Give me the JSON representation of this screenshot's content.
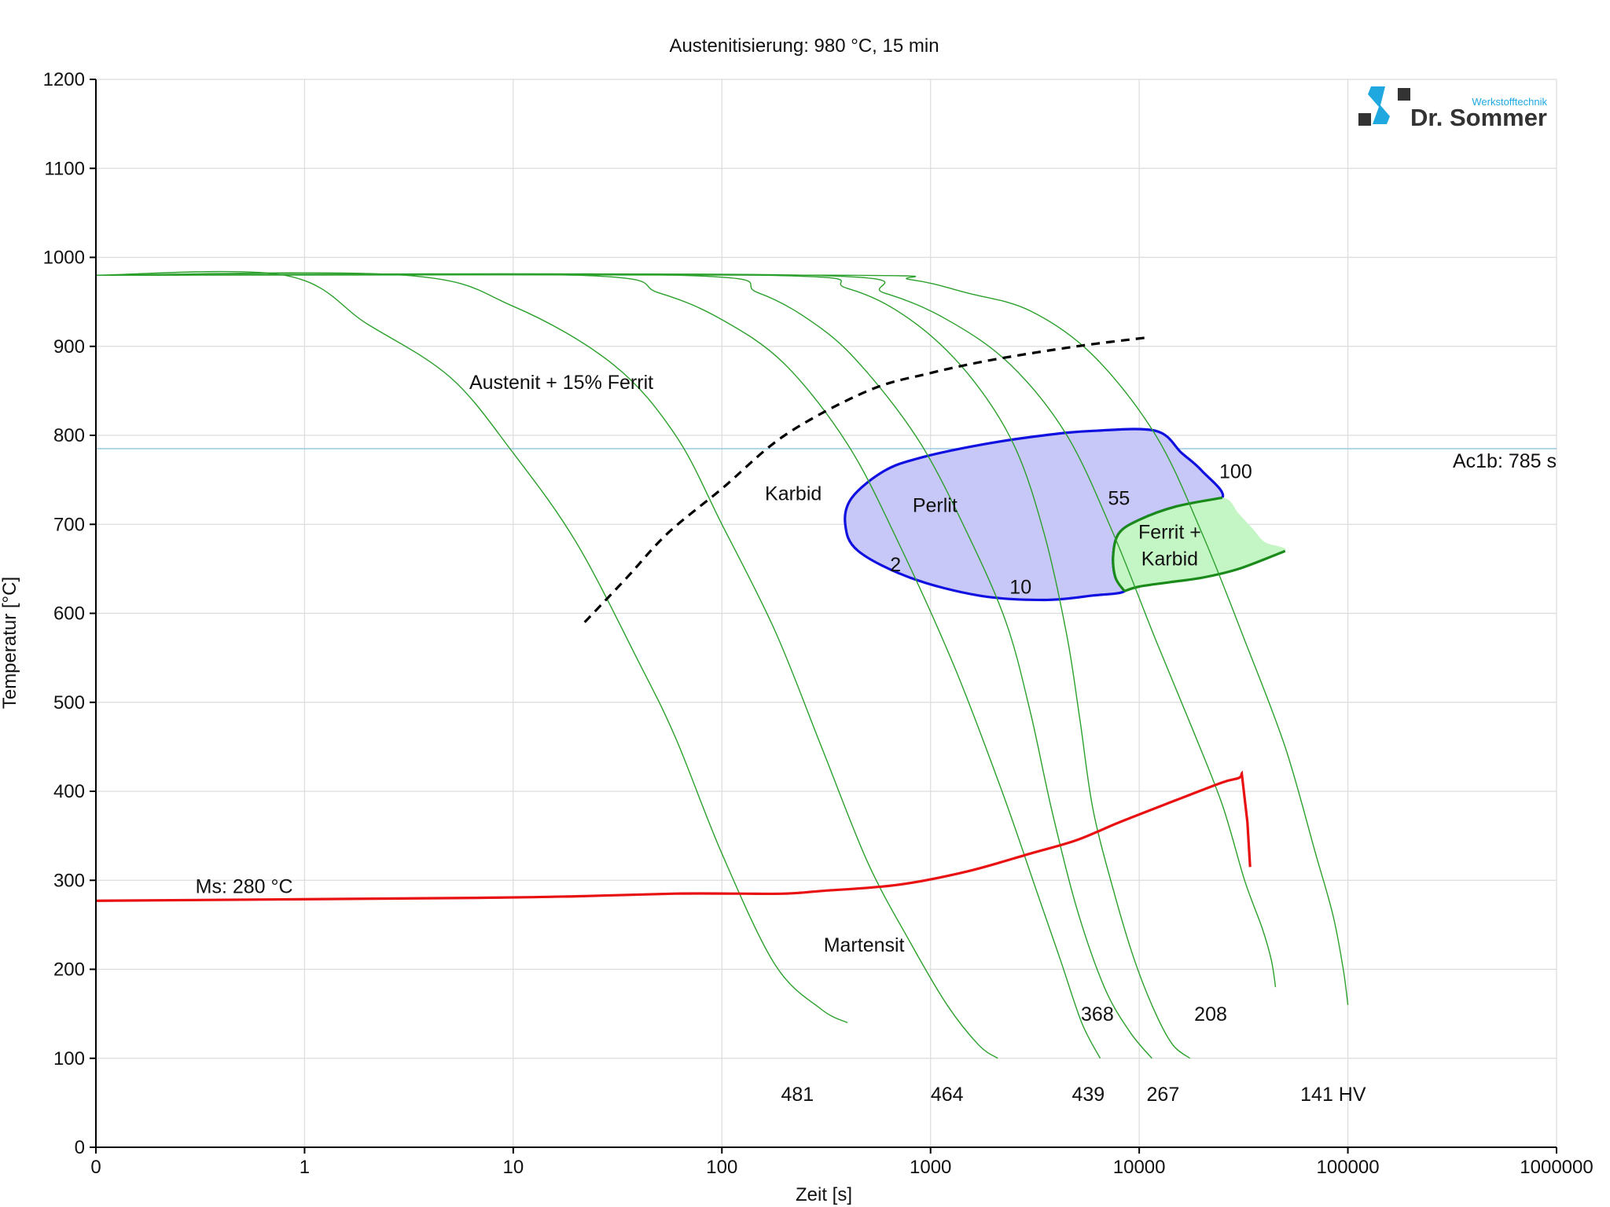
{
  "chart_data": {
    "type": "line",
    "title": "Austenitisierung: 980 °C, 15 min",
    "xlabel": "Zeit [s]",
    "ylabel": "Temperatur [°C]",
    "x_scale": "log",
    "x_ticks": [
      {
        "label": "0",
        "value": 0.1
      },
      {
        "label": "1",
        "value": 1
      },
      {
        "label": "10",
        "value": 10
      },
      {
        "label": "100",
        "value": 100
      },
      {
        "label": "1000",
        "value": 1000
      },
      {
        "label": "10000",
        "value": 10000
      },
      {
        "label": "100000",
        "value": 100000
      },
      {
        "label": "1000000",
        "value": 1000000
      }
    ],
    "y_ticks": [
      0,
      100,
      200,
      300,
      400,
      500,
      600,
      700,
      800,
      900,
      1000,
      1100,
      1200
    ],
    "xlim": [
      0.1,
      1000000
    ],
    "ylim": [
      0,
      1200
    ],
    "grid": true,
    "logo": {
      "brand": "Dr. Sommer",
      "tagline": "Werkstofftechnik"
    },
    "colors": {
      "cooling": "#2ca02c",
      "perlit_edge": "#1010e0",
      "perlit_fill": "#c8c8f8",
      "ferrit_edge": "#1a8a1a",
      "ferrit_fill": "#c4f5c4",
      "ms": "#e81010",
      "ac1b": "#9cc8e0",
      "start": "#000000",
      "logo_blue": "#1fa8e0",
      "logo_dark": "#333333"
    },
    "reference_lines": [
      {
        "label": "Ac1b: 785 s",
        "y": 785
      }
    ],
    "ms_label": "Ms: 280 °C",
    "region_labels": [
      {
        "text": "Austenit + 15% Ferrit",
        "x": 17,
        "y": 860
      },
      {
        "text": "Karbid",
        "x": 220,
        "y": 735
      },
      {
        "text": "Perlit",
        "x": 1050,
        "y": 722
      },
      {
        "text": "Ferrit +",
        "x": 14000,
        "y": 692
      },
      {
        "text": "Karbid",
        "x": 14000,
        "y": 662
      },
      {
        "text": "Martensit",
        "x": 480,
        "y": 228
      }
    ],
    "percent_labels": [
      {
        "text": "2",
        "x": 680,
        "y": 655
      },
      {
        "text": "10",
        "x": 2700,
        "y": 630
      },
      {
        "text": "55",
        "x": 8000,
        "y": 730
      },
      {
        "text": "100",
        "x": 29000,
        "y": 760
      }
    ],
    "hardness_labels": [
      {
        "text": "481",
        "x": 230,
        "y": 60
      },
      {
        "text": "464",
        "x": 1200,
        "y": 60
      },
      {
        "text": "439",
        "x": 5700,
        "y": 60
      },
      {
        "text": "267",
        "x": 13000,
        "y": 60
      },
      {
        "text": "141 HV",
        "x": 85000,
        "y": 60
      },
      {
        "text": "368",
        "x": 6300,
        "y": 150
      },
      {
        "text": "208",
        "x": 22000,
        "y": 150
      }
    ],
    "series": [
      {
        "role": "cooling",
        "points": [
          [
            0.1,
            980
          ],
          [
            0.8,
            980
          ],
          [
            2,
            925
          ],
          [
            5,
            865
          ],
          [
            10,
            780
          ],
          [
            20,
            680
          ],
          [
            40,
            545
          ],
          [
            60,
            460
          ],
          [
            100,
            330
          ],
          [
            180,
            205
          ],
          [
            300,
            155
          ],
          [
            400,
            140
          ]
        ]
      },
      {
        "role": "cooling",
        "points": [
          [
            0.1,
            980
          ],
          [
            3,
            980
          ],
          [
            10,
            945
          ],
          [
            30,
            880
          ],
          [
            60,
            800
          ],
          [
            100,
            700
          ],
          [
            180,
            580
          ],
          [
            300,
            450
          ],
          [
            500,
            320
          ],
          [
            800,
            230
          ],
          [
            1200,
            160
          ],
          [
            1700,
            115
          ],
          [
            2100,
            100
          ]
        ]
      },
      {
        "role": "cooling",
        "points": [
          [
            0.1,
            980
          ],
          [
            20,
            980
          ],
          [
            50,
            960
          ],
          [
            100,
            930
          ],
          [
            200,
            880
          ],
          [
            400,
            790
          ],
          [
            700,
            680
          ],
          [
            1300,
            540
          ],
          [
            2200,
            400
          ],
          [
            3200,
            290
          ],
          [
            4200,
            210
          ],
          [
            5300,
            140
          ],
          [
            6500,
            100
          ]
        ]
      },
      {
        "role": "cooling",
        "points": [
          [
            0.1,
            980
          ],
          [
            60,
            980
          ],
          [
            150,
            960
          ],
          [
            300,
            920
          ],
          [
            500,
            870
          ],
          [
            900,
            790
          ],
          [
            1500,
            690
          ],
          [
            2300,
            590
          ],
          [
            3000,
            490
          ],
          [
            3800,
            380
          ],
          [
            5000,
            270
          ],
          [
            6800,
            180
          ],
          [
            9000,
            130
          ],
          [
            11500,
            100
          ]
        ]
      },
      {
        "role": "cooling",
        "points": [
          [
            0.1,
            980
          ],
          [
            150,
            980
          ],
          [
            400,
            965
          ],
          [
            800,
            930
          ],
          [
            1500,
            870
          ],
          [
            2500,
            790
          ],
          [
            3500,
            690
          ],
          [
            4500,
            575
          ],
          [
            5200,
            480
          ],
          [
            6000,
            380
          ],
          [
            7500,
            290
          ],
          [
            9500,
            210
          ],
          [
            12000,
            150
          ],
          [
            14500,
            115
          ],
          [
            17500,
            100
          ]
        ]
      },
      {
        "role": "cooling",
        "points": [
          [
            0.1,
            980
          ],
          [
            250,
            980
          ],
          [
            600,
            960
          ],
          [
            1200,
            930
          ],
          [
            2400,
            880
          ],
          [
            4500,
            800
          ],
          [
            7500,
            690
          ],
          [
            12000,
            570
          ],
          [
            18000,
            470
          ],
          [
            25000,
            385
          ],
          [
            32000,
            300
          ],
          [
            39000,
            245
          ],
          [
            43000,
            210
          ],
          [
            45000,
            180
          ]
        ]
      },
      {
        "role": "cooling",
        "points": [
          [
            0.1,
            980
          ],
          [
            350,
            980
          ],
          [
            800,
            975
          ],
          [
            1500,
            960
          ],
          [
            3000,
            940
          ],
          [
            6000,
            890
          ],
          [
            12000,
            800
          ],
          [
            20000,
            690
          ],
          [
            32000,
            570
          ],
          [
            50000,
            450
          ],
          [
            70000,
            330
          ],
          [
            85000,
            260
          ],
          [
            95000,
            200
          ],
          [
            100000,
            160
          ]
        ]
      }
    ],
    "start_curve": [
      [
        22,
        590
      ],
      [
        35,
        640
      ],
      [
        55,
        690
      ],
      [
        100,
        740
      ],
      [
        200,
        800
      ],
      [
        500,
        850
      ],
      [
        1000,
        870
      ],
      [
        2000,
        885
      ],
      [
        5000,
        900
      ],
      [
        11000,
        910
      ]
    ],
    "perlit_region": [
      [
        6000,
        805
      ],
      [
        12000,
        805
      ],
      [
        16000,
        780
      ],
      [
        20000,
        760
      ],
      [
        25000,
        730
      ],
      [
        15000,
        720
      ],
      [
        10000,
        705
      ],
      [
        8000,
        690
      ],
      [
        7500,
        665
      ],
      [
        7700,
        640
      ],
      [
        8500,
        625
      ],
      [
        6000,
        620
      ],
      [
        3500,
        615
      ],
      [
        1700,
        620
      ],
      [
        800,
        640
      ],
      [
        450,
        670
      ],
      [
        390,
        700
      ],
      [
        420,
        730
      ],
      [
        600,
        760
      ],
      [
        900,
        775
      ],
      [
        1800,
        790
      ],
      [
        3500,
        800
      ]
    ],
    "ferrit_region": [
      [
        25000,
        730
      ],
      [
        30000,
        712
      ],
      [
        35000,
        695
      ],
      [
        40000,
        680
      ],
      [
        50000,
        670
      ],
      [
        30000,
        650
      ],
      [
        20000,
        640
      ],
      [
        14000,
        635
      ],
      [
        10000,
        630
      ],
      [
        8500,
        625
      ],
      [
        7700,
        640
      ],
      [
        7500,
        665
      ],
      [
        8000,
        690
      ],
      [
        10000,
        705
      ],
      [
        15000,
        720
      ]
    ],
    "ms_curve": [
      [
        0.1,
        277
      ],
      [
        5,
        280
      ],
      [
        20,
        282
      ],
      [
        60,
        285
      ],
      [
        120,
        285
      ],
      [
        200,
        285
      ],
      [
        300,
        288
      ],
      [
        700,
        295
      ],
      [
        1500,
        310
      ],
      [
        3000,
        330
      ],
      [
        5000,
        345
      ],
      [
        8000,
        365
      ],
      [
        15000,
        390
      ],
      [
        25000,
        410
      ],
      [
        30000,
        415
      ],
      [
        31000,
        420
      ],
      [
        33000,
        365
      ],
      [
        34000,
        315
      ]
    ]
  }
}
